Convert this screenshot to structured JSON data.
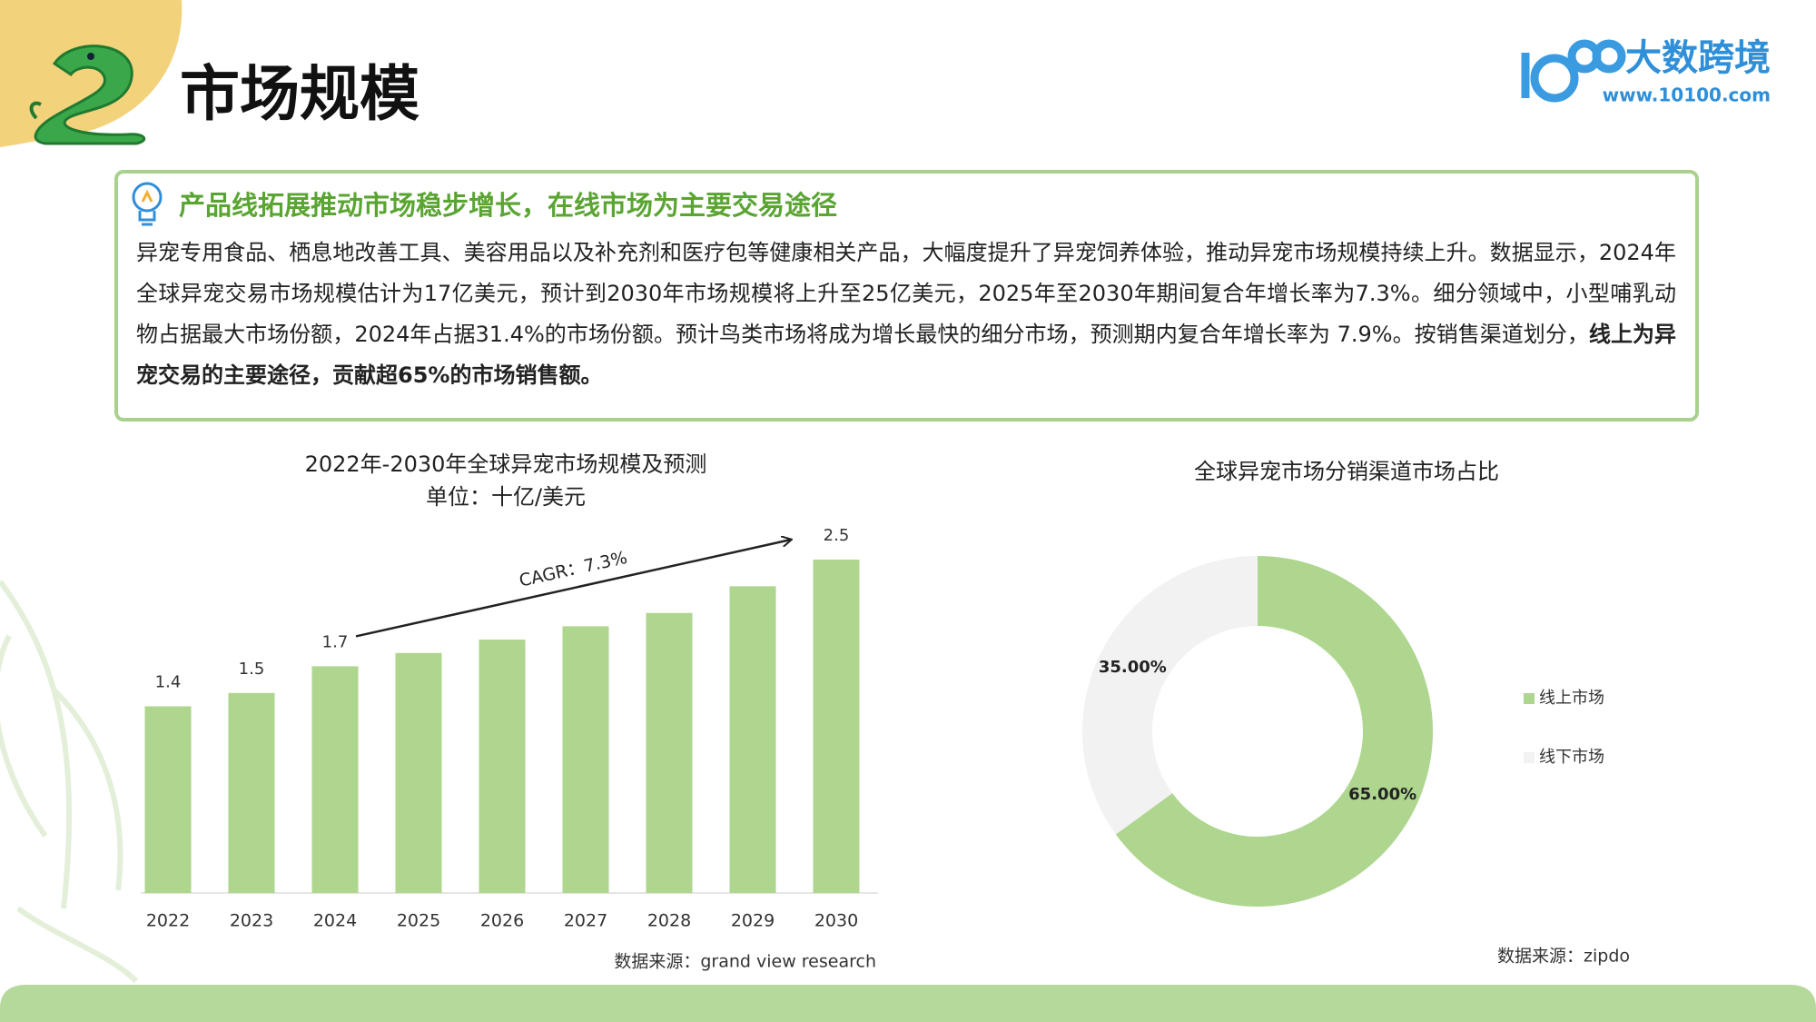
{
  "header": {
    "title": "市场规模",
    "logo_name": "大数跨境",
    "logo_url": "www.10100.com"
  },
  "summary": {
    "heading": "产品线拓展推动市场稳步增长，在线市场为主要交易途径",
    "body": "异宠专用食品、栖息地改善工具、美容用品以及补充剂和医疗包等健康相关产品，大幅度提升了异宠饲养体验，推动异宠市场规模持续上升。数据显示，2024年全球异宠交易市场规模估计为17亿美元，预计到2030年市场规模将上升至25亿美元，2025年至2030年期间复合年增长率为7.3%。细分领域中，小型哺乳动物占据最大市场份额，2024年占据31.4%的市场份额。预计鸟类市场将成为增长最快的细分市场，预测期内复合年增长率为 7.9%。按销售渠道划分，",
    "body_emphasis": "线上为异宠交易的主要途径，贡献超65%的市场销售额。"
  },
  "chart_data": [
    {
      "type": "bar",
      "title": "2022年-2030年全球异宠市场规模及预测",
      "subtitle": "单位：十亿/美元",
      "categories": [
        "2022",
        "2023",
        "2024",
        "2025",
        "2026",
        "2027",
        "2028",
        "2029",
        "2030"
      ],
      "values": [
        1.4,
        1.5,
        1.7,
        1.8,
        1.9,
        2.0,
        2.1,
        2.3,
        2.5
      ],
      "value_labels": [
        "1.4",
        "1.5",
        "1.7",
        null,
        null,
        null,
        null,
        null,
        "2.5"
      ],
      "color": "#aed68e",
      "annotation": "CAGR：7.3%",
      "source": "数据来源：grand view research"
    },
    {
      "type": "pie",
      "donut": true,
      "title": "全球异宠市场分销渠道市场占比",
      "categories": [
        "线上市场",
        "线下市场"
      ],
      "values": [
        65,
        35
      ],
      "value_labels": [
        "65.00%",
        "35.00%"
      ],
      "colors": [
        "#aed68e",
        "#f2f2f2"
      ],
      "legend": "right",
      "source": "数据来源：zipdo"
    }
  ]
}
